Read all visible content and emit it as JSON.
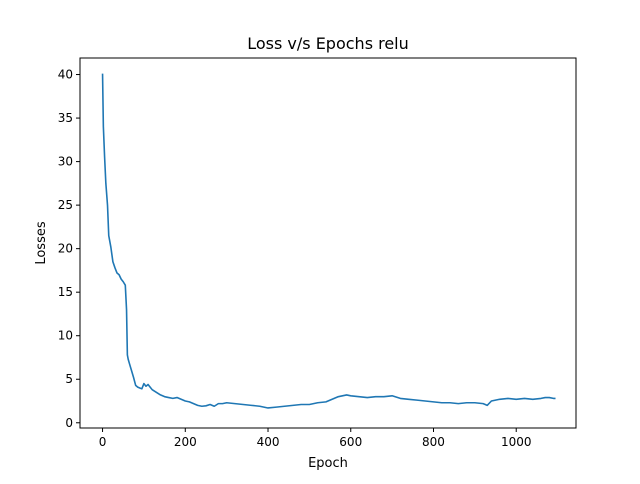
{
  "chart_data": {
    "type": "line",
    "title": "Loss v/s Epochs relu",
    "xlabel": "Epoch",
    "ylabel": "Losses",
    "xlim": [
      -54.5,
      1144.5
    ],
    "ylim": [
      -0.6,
      41.9
    ],
    "xticks": [
      0,
      200,
      400,
      600,
      800,
      1000
    ],
    "yticks": [
      0,
      5,
      10,
      15,
      20,
      25,
      30,
      35,
      40
    ],
    "grid": false,
    "legend": "none",
    "series_color": "#1f77b4",
    "series": [
      {
        "x": [
          0,
          2,
          5,
          8,
          12,
          15,
          20,
          25,
          30,
          35,
          40,
          45,
          50,
          55,
          58,
          60,
          62,
          65,
          70,
          75,
          80,
          85,
          90,
          95,
          100,
          105,
          110,
          115,
          120,
          130,
          140,
          150,
          160,
          170,
          180,
          190,
          200,
          210,
          220,
          230,
          240,
          250,
          260,
          270,
          280,
          290,
          300,
          320,
          340,
          360,
          380,
          400,
          420,
          440,
          460,
          480,
          500,
          520,
          540,
          550,
          560,
          570,
          580,
          590,
          600,
          620,
          640,
          660,
          680,
          700,
          720,
          740,
          760,
          780,
          800,
          820,
          840,
          860,
          880,
          900,
          920,
          930,
          940,
          950,
          960,
          980,
          1000,
          1020,
          1040,
          1060,
          1070,
          1080,
          1090,
          1095
        ],
        "y": [
          40.1,
          34.0,
          30.5,
          27.5,
          25.0,
          21.5,
          20.2,
          18.5,
          17.8,
          17.2,
          17.0,
          16.5,
          16.2,
          15.8,
          13.0,
          7.8,
          7.3,
          6.8,
          6.0,
          5.2,
          4.3,
          4.1,
          4.0,
          3.9,
          4.5,
          4.2,
          4.4,
          4.1,
          3.8,
          3.5,
          3.2,
          3.0,
          2.9,
          2.8,
          2.9,
          2.7,
          2.5,
          2.4,
          2.2,
          2.0,
          1.9,
          1.95,
          2.1,
          1.9,
          2.2,
          2.2,
          2.3,
          2.2,
          2.1,
          2.0,
          1.9,
          1.7,
          1.8,
          1.9,
          2.0,
          2.1,
          2.1,
          2.3,
          2.4,
          2.6,
          2.8,
          3.0,
          3.1,
          3.2,
          3.1,
          3.0,
          2.9,
          3.0,
          3.0,
          3.1,
          2.8,
          2.7,
          2.6,
          2.5,
          2.4,
          2.3,
          2.3,
          2.2,
          2.3,
          2.3,
          2.2,
          2.0,
          2.5,
          2.6,
          2.7,
          2.8,
          2.7,
          2.8,
          2.7,
          2.8,
          2.9,
          2.9,
          2.8,
          2.8
        ]
      }
    ]
  }
}
